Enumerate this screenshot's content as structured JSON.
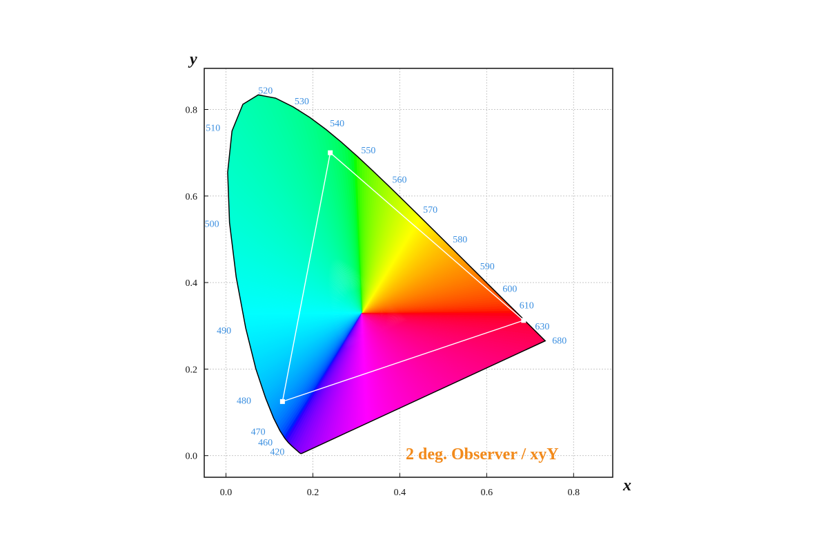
{
  "chart_data": {
    "type": "scatter",
    "title": "",
    "annotation": "2 deg. Observer / xyY",
    "xlabel": "x",
    "ylabel": "y",
    "xlim": [
      -0.05,
      0.89
    ],
    "ylim": [
      -0.05,
      0.895
    ],
    "x_ticks": [
      0.0,
      0.2,
      0.4,
      0.6,
      0.8
    ],
    "y_ticks": [
      0.0,
      0.2,
      0.4,
      0.6,
      0.8
    ],
    "x_tick_labels": [
      "0.0",
      "0.2",
      "0.4",
      "0.6",
      "0.8"
    ],
    "y_tick_labels": [
      "0.0",
      "0.2",
      "0.4",
      "0.6",
      "0.8"
    ],
    "grid": true,
    "white_point": [
      0.3127,
      0.329
    ],
    "spectral_locus": [
      [
        0.1741,
        0.005
      ],
      [
        0.1738,
        0.0049
      ],
      [
        0.1736,
        0.0049
      ],
      [
        0.1733,
        0.0048
      ],
      [
        0.173,
        0.0048
      ],
      [
        0.1726,
        0.0048
      ],
      [
        0.1721,
        0.0048
      ],
      [
        0.1714,
        0.0051
      ],
      [
        0.1703,
        0.0058
      ],
      [
        0.1689,
        0.0069
      ],
      [
        0.1669,
        0.0086
      ],
      [
        0.1644,
        0.0109
      ],
      [
        0.1611,
        0.0138
      ],
      [
        0.1566,
        0.0177
      ],
      [
        0.151,
        0.0227
      ],
      [
        0.144,
        0.0297
      ],
      [
        0.1355,
        0.0399
      ],
      [
        0.1241,
        0.0578
      ],
      [
        0.1096,
        0.0868
      ],
      [
        0.0913,
        0.1327
      ],
      [
        0.0687,
        0.2007
      ],
      [
        0.0454,
        0.295
      ],
      [
        0.0235,
        0.4127
      ],
      [
        0.0082,
        0.5384
      ],
      [
        0.0039,
        0.6548
      ],
      [
        0.0139,
        0.7502
      ],
      [
        0.0389,
        0.812
      ],
      [
        0.0743,
        0.8338
      ],
      [
        0.1142,
        0.8262
      ],
      [
        0.1547,
        0.8059
      ],
      [
        0.1929,
        0.7816
      ],
      [
        0.2296,
        0.7543
      ],
      [
        0.2658,
        0.7243
      ],
      [
        0.3016,
        0.6923
      ],
      [
        0.3373,
        0.6589
      ],
      [
        0.3731,
        0.6245
      ],
      [
        0.4087,
        0.5896
      ],
      [
        0.4441,
        0.5547
      ],
      [
        0.4788,
        0.5202
      ],
      [
        0.5125,
        0.4866
      ],
      [
        0.5448,
        0.4544
      ],
      [
        0.5752,
        0.4242
      ],
      [
        0.6029,
        0.3965
      ],
      [
        0.627,
        0.3725
      ],
      [
        0.6482,
        0.3514
      ],
      [
        0.6658,
        0.334
      ],
      [
        0.6801,
        0.3197
      ],
      [
        0.6915,
        0.3083
      ],
      [
        0.7006,
        0.2993
      ],
      [
        0.7079,
        0.292
      ],
      [
        0.714,
        0.2859
      ],
      [
        0.719,
        0.2809
      ],
      [
        0.723,
        0.277
      ],
      [
        0.726,
        0.274
      ],
      [
        0.7283,
        0.2717
      ],
      [
        0.73,
        0.27
      ],
      [
        0.7311,
        0.2689
      ],
      [
        0.732,
        0.268
      ],
      [
        0.7327,
        0.2673
      ],
      [
        0.7334,
        0.2666
      ],
      [
        0.734,
        0.266
      ],
      [
        0.7344,
        0.2656
      ],
      [
        0.7346,
        0.2654
      ],
      [
        0.7347,
        0.2653
      ]
    ],
    "wavelength_labels": [
      {
        "label": "420",
        "x": 0.1714,
        "y": 0.0051,
        "dx": -44,
        "dy": 2
      },
      {
        "label": "460",
        "x": 0.144,
        "y": 0.0297,
        "dx": -44,
        "dy": 4
      },
      {
        "label": "470",
        "x": 0.1241,
        "y": 0.0578,
        "dx": -42,
        "dy": 6
      },
      {
        "label": "480",
        "x": 0.0913,
        "y": 0.1327,
        "dx": -42,
        "dy": 8
      },
      {
        "label": "490",
        "x": 0.0454,
        "y": 0.295,
        "dx": -42,
        "dy": 8
      },
      {
        "label": "500",
        "x": 0.0082,
        "y": 0.5384,
        "dx": -36,
        "dy": 6
      },
      {
        "label": "510",
        "x": 0.0139,
        "y": 0.7502,
        "dx": -38,
        "dy": 0
      },
      {
        "label": "520",
        "x": 0.0743,
        "y": 0.8338,
        "dx": 0,
        "dy": -2
      },
      {
        "label": "530",
        "x": 0.1547,
        "y": 0.8059,
        "dx": 2,
        "dy": -4
      },
      {
        "label": "540",
        "x": 0.2296,
        "y": 0.7543,
        "dx": 6,
        "dy": -4
      },
      {
        "label": "550",
        "x": 0.3016,
        "y": 0.6923,
        "dx": 6,
        "dy": -4
      },
      {
        "label": "560",
        "x": 0.3731,
        "y": 0.6245,
        "dx": 6,
        "dy": -4
      },
      {
        "label": "570",
        "x": 0.4441,
        "y": 0.5547,
        "dx": 6,
        "dy": -4
      },
      {
        "label": "580",
        "x": 0.5125,
        "y": 0.4866,
        "dx": 6,
        "dy": -4
      },
      {
        "label": "590",
        "x": 0.5752,
        "y": 0.4242,
        "dx": 6,
        "dy": -4
      },
      {
        "label": "600",
        "x": 0.627,
        "y": 0.3725,
        "dx": 6,
        "dy": -4
      },
      {
        "label": "610",
        "x": 0.6658,
        "y": 0.334,
        "dx": 6,
        "dy": -4
      },
      {
        "label": "630",
        "x": 0.7079,
        "y": 0.292,
        "dx": 2,
        "dy": 0
      },
      {
        "label": "680",
        "x": 0.7347,
        "y": 0.2653,
        "dx": 10,
        "dy": 4
      }
    ],
    "series": [
      {
        "type": "polygon",
        "points": [
          [
            0.24,
            0.7
          ],
          [
            0.685,
            0.3125
          ],
          [
            0.13,
            0.125
          ]
        ],
        "closed": true
      }
    ]
  }
}
